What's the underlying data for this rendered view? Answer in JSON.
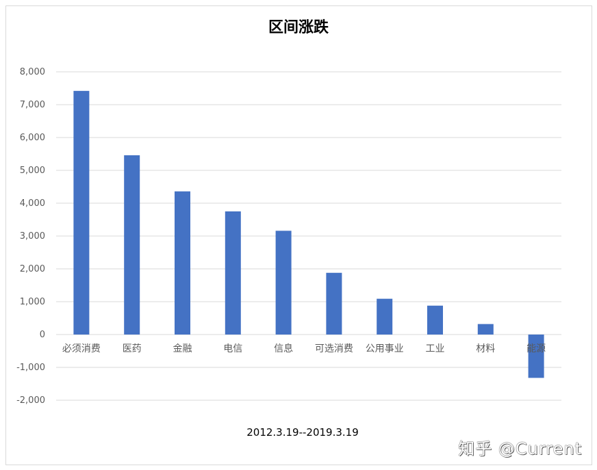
{
  "chart_data": {
    "type": "bar",
    "title": "区间涨跌",
    "subtitle": "2012.3.19--2019.3.19",
    "categories": [
      "必须消费",
      "医药",
      "金融",
      "电信",
      "信息",
      "可选消费",
      "公用事业",
      "工业",
      "材料",
      "能源"
    ],
    "values": [
      7420,
      5460,
      4360,
      3750,
      3160,
      1880,
      1090,
      880,
      320,
      -1320
    ],
    "ylim": [
      -2000,
      8000
    ],
    "yticks": [
      8000,
      7000,
      6000,
      5000,
      4000,
      3000,
      2000,
      1000,
      0,
      -1000,
      -2000
    ],
    "ytick_labels": [
      "8,000",
      "7,000",
      "6,000",
      "5,000",
      "4,000",
      "3,000",
      "2,000",
      "1,000",
      "0",
      "-1,000",
      "-2,000"
    ],
    "bar_color": "#4472c4",
    "grid": true,
    "legend": "none"
  },
  "watermark": "知乎 @Current"
}
